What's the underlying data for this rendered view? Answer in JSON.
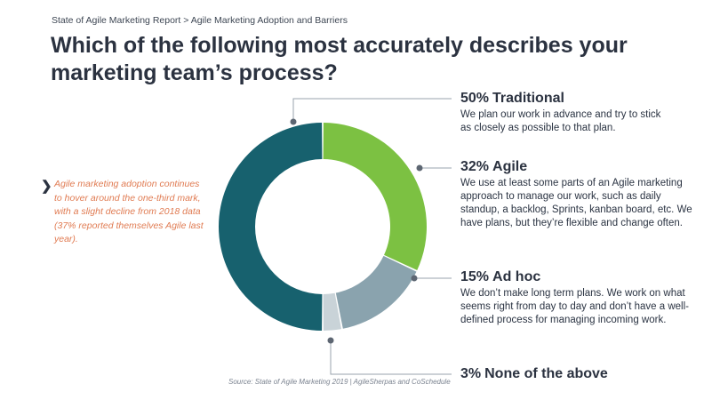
{
  "breadcrumb": "State of Agile Marketing Report  > Agile Marketing Adoption and Barriers",
  "title": "Which of the following most accurately describes your marketing team’s process?",
  "side_note": {
    "icon": "chevron-right-icon",
    "text": "Agile marketing adoption continues to hover around the one-third mark, with a slight decline from 2018 data (37% reported themselves Agile last year)."
  },
  "source": "Source: State of Agile Marketing 2019 | AgileSherpas and CoSchedule",
  "colors": {
    "traditional": "#17616e",
    "agile": "#7cc142",
    "adhoc": "#8aa3ae",
    "none": "#c9d3d8",
    "accent": "#e07b52"
  },
  "chart_data": {
    "type": "pie",
    "donut": true,
    "slices": [
      {
        "label": "Traditional",
        "value": 50,
        "pct_label": "50%",
        "description": "We plan our work in advance and try to stick as closely as possible to that plan."
      },
      {
        "label": "Agile",
        "value": 32,
        "pct_label": "32%",
        "description": "We use at least some parts of an Agile marketing approach to manage our work, such as daily standup, a backlog, Sprints, kanban board, etc. We have plans, but they’re flexible and change often."
      },
      {
        "label": "Ad hoc",
        "value": 15,
        "pct_label": "15%",
        "description": "We don’t make long term plans. We work on what seems right from day to day and don’t have a well-defined process for managing incoming work."
      },
      {
        "label": "None of the above",
        "value": 3,
        "pct_label": "3%",
        "description": ""
      }
    ]
  }
}
